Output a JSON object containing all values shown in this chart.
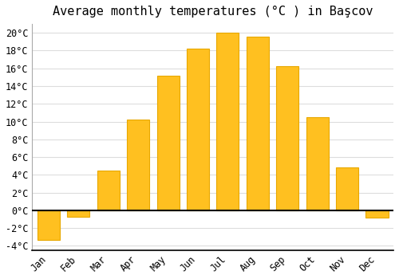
{
  "title": "Average monthly temperatures (°C ) in Başcov",
  "months": [
    "Jan",
    "Feb",
    "Mar",
    "Apr",
    "May",
    "Jun",
    "Jul",
    "Aug",
    "Sep",
    "Oct",
    "Nov",
    "Dec"
  ],
  "values": [
    -3.3,
    -0.7,
    4.5,
    10.2,
    15.2,
    18.2,
    20.0,
    19.6,
    16.2,
    10.5,
    4.8,
    -0.8
  ],
  "bar_color": "#FFC020",
  "bar_edge_color": "#E8A800",
  "background_color": "#FFFFFF",
  "grid_color": "#DDDDDD",
  "ylim_min": -4.5,
  "ylim_max": 21.0,
  "yticks": [
    -4,
    -2,
    0,
    2,
    4,
    6,
    8,
    10,
    12,
    14,
    16,
    18,
    20
  ],
  "title_fontsize": 11,
  "tick_fontsize": 8.5,
  "bar_width": 0.75
}
